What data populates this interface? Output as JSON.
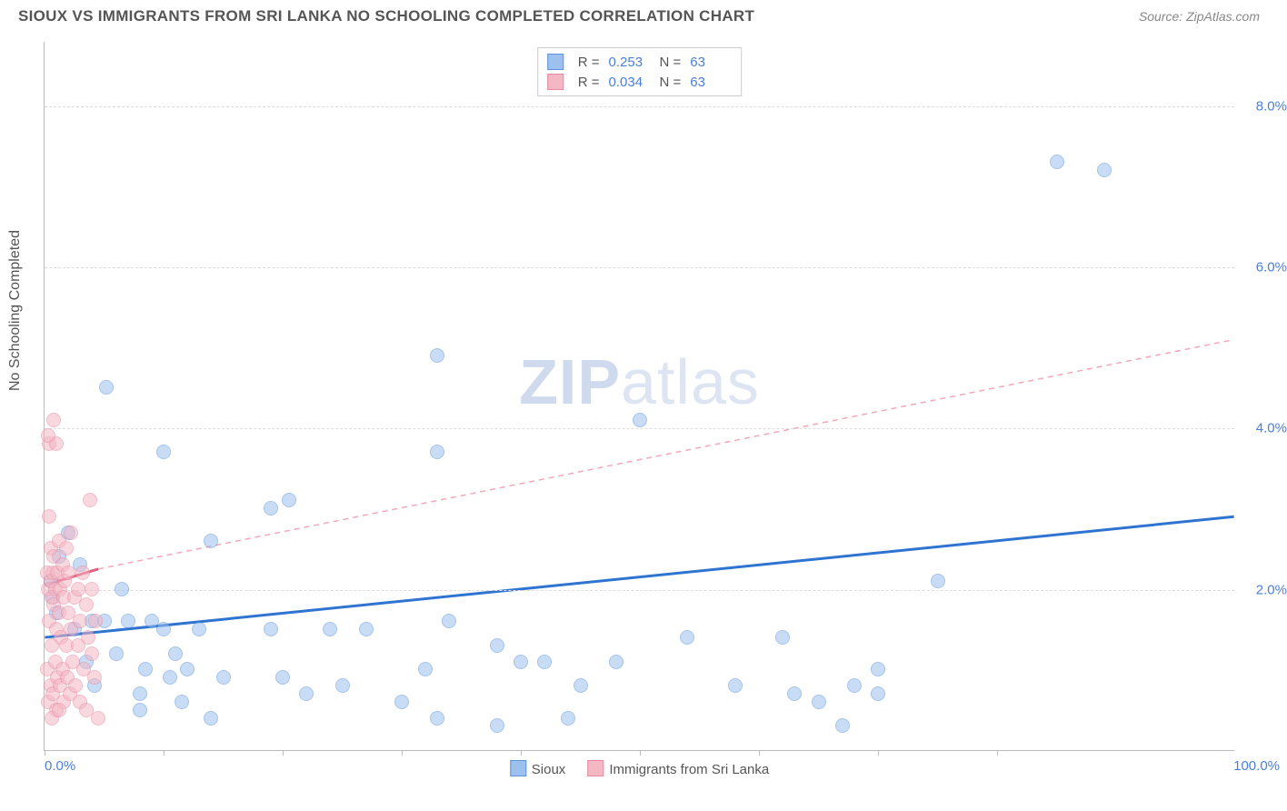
{
  "title": "SIOUX VS IMMIGRANTS FROM SRI LANKA NO SCHOOLING COMPLETED CORRELATION CHART",
  "source_label": "Source: ",
  "source_name": "ZipAtlas.com",
  "ylabel": "No Schooling Completed",
  "watermark_bold": "ZIP",
  "watermark_light": "atlas",
  "chart": {
    "type": "scatter",
    "xlim": [
      0,
      100
    ],
    "ylim": [
      0,
      8.8
    ],
    "ytick_values": [
      2.0,
      4.0,
      6.0,
      8.0
    ],
    "ytick_labels": [
      "2.0%",
      "4.0%",
      "6.0%",
      "8.0%"
    ],
    "xtick_positions": [
      0,
      10,
      20,
      30,
      40,
      50,
      60,
      70,
      80
    ],
    "xmin_label": "0.0%",
    "xmax_label": "100.0%",
    "grid_color": "#dddddd",
    "axis_color": "#bbbbbb",
    "background_color": "#ffffff",
    "marker_radius": 8,
    "marker_opacity": 0.55
  },
  "series": [
    {
      "name": "Sioux",
      "fill": "#9dc1ee",
      "stroke": "#5e95d9",
      "r_label": "R  =",
      "r_value": "0.253",
      "n_label": "N  =",
      "n_value": "63",
      "trend": {
        "x1": 0,
        "y1": 1.4,
        "x2": 100,
        "y2": 2.9,
        "stroke": "#2f74d0",
        "stroke_width": 3,
        "dash": ""
      },
      "points": [
        [
          0.5,
          2.1
        ],
        [
          0.7,
          1.9
        ],
        [
          1,
          1.7
        ],
        [
          1.2,
          2.4
        ],
        [
          2,
          2.7
        ],
        [
          2.5,
          1.5
        ],
        [
          3,
          2.3
        ],
        [
          3.5,
          1.1
        ],
        [
          4,
          1.6
        ],
        [
          4.2,
          0.8
        ],
        [
          5,
          1.6
        ],
        [
          5.2,
          4.5
        ],
        [
          6,
          1.2
        ],
        [
          6.5,
          2.0
        ],
        [
          7,
          1.6
        ],
        [
          8,
          0.7
        ],
        [
          8,
          0.5
        ],
        [
          8.5,
          1.0
        ],
        [
          9,
          1.6
        ],
        [
          10,
          1.5
        ],
        [
          10,
          3.7
        ],
        [
          10.5,
          0.9
        ],
        [
          11,
          1.2
        ],
        [
          11.5,
          0.6
        ],
        [
          12,
          1.0
        ],
        [
          13,
          1.5
        ],
        [
          14,
          2.6
        ],
        [
          14,
          0.4
        ],
        [
          15,
          0.9
        ],
        [
          19,
          3.0
        ],
        [
          19,
          1.5
        ],
        [
          20,
          0.9
        ],
        [
          20.5,
          3.1
        ],
        [
          22,
          0.7
        ],
        [
          24,
          1.5
        ],
        [
          25,
          0.8
        ],
        [
          27,
          1.5
        ],
        [
          30,
          0.6
        ],
        [
          32,
          1.0
        ],
        [
          33,
          0.4
        ],
        [
          33,
          3.7
        ],
        [
          33,
          4.9
        ],
        [
          34,
          1.6
        ],
        [
          38,
          0.3
        ],
        [
          38,
          1.3
        ],
        [
          40,
          1.1
        ],
        [
          42,
          1.1
        ],
        [
          44,
          0.4
        ],
        [
          45,
          0.8
        ],
        [
          48,
          1.1
        ],
        [
          50,
          4.1
        ],
        [
          54,
          1.4
        ],
        [
          58,
          0.8
        ],
        [
          62,
          1.4
        ],
        [
          65,
          0.6
        ],
        [
          67,
          0.3
        ],
        [
          68,
          0.8
        ],
        [
          70,
          0.7
        ],
        [
          75,
          2.1
        ],
        [
          85,
          7.3
        ],
        [
          89,
          7.2
        ],
        [
          70,
          1.0
        ],
        [
          63,
          0.7
        ]
      ]
    },
    {
      "name": "Immigrants from Sri Lanka",
      "fill": "#f4b7c4",
      "stroke": "#e88aa0",
      "r_label": "R  =",
      "r_value": "0.034",
      "n_label": "N  =",
      "n_value": "63",
      "trend_solid": {
        "x1": 0,
        "y1": 2.05,
        "x2": 4.5,
        "y2": 2.25,
        "stroke": "#e06080",
        "stroke_width": 3
      },
      "trend_dash": {
        "x1": 4.5,
        "y1": 2.25,
        "x2": 100,
        "y2": 5.1,
        "stroke": "#f2a8b8",
        "stroke_width": 1.5,
        "dash": "6,5"
      },
      "points": [
        [
          0.2,
          2.2
        ],
        [
          0.2,
          1.0
        ],
        [
          0.3,
          2.0
        ],
        [
          0.3,
          0.6
        ],
        [
          0.4,
          1.6
        ],
        [
          0.4,
          2.9
        ],
        [
          0.4,
          3.8
        ],
        [
          0.5,
          0.8
        ],
        [
          0.5,
          2.1
        ],
        [
          0.5,
          2.5
        ],
        [
          0.6,
          1.3
        ],
        [
          0.6,
          1.9
        ],
        [
          0.7,
          2.2
        ],
        [
          0.7,
          0.7
        ],
        [
          0.8,
          1.8
        ],
        [
          0.8,
          2.4
        ],
        [
          0.8,
          4.1
        ],
        [
          0.9,
          1.1
        ],
        [
          0.9,
          2.0
        ],
        [
          1.0,
          0.5
        ],
        [
          1.0,
          1.5
        ],
        [
          1.0,
          3.8
        ],
        [
          1.1,
          2.2
        ],
        [
          1.1,
          0.9
        ],
        [
          1.2,
          1.7
        ],
        [
          1.2,
          2.6
        ],
        [
          1.3,
          2.0
        ],
        [
          1.3,
          0.8
        ],
        [
          1.4,
          1.4
        ],
        [
          1.5,
          2.3
        ],
        [
          1.5,
          1.0
        ],
        [
          1.6,
          1.9
        ],
        [
          1.6,
          0.6
        ],
        [
          1.7,
          2.1
        ],
        [
          1.8,
          2.5
        ],
        [
          1.8,
          1.3
        ],
        [
          1.9,
          0.9
        ],
        [
          2.0,
          1.7
        ],
        [
          2.0,
          2.2
        ],
        [
          2.1,
          0.7
        ],
        [
          2.2,
          1.5
        ],
        [
          2.2,
          2.7
        ],
        [
          2.4,
          1.1
        ],
        [
          2.5,
          1.9
        ],
        [
          2.6,
          0.8
        ],
        [
          2.8,
          2.0
        ],
        [
          2.8,
          1.3
        ],
        [
          3.0,
          1.6
        ],
        [
          3.0,
          0.6
        ],
        [
          3.2,
          2.2
        ],
        [
          3.3,
          1.0
        ],
        [
          3.5,
          1.8
        ],
        [
          3.5,
          0.5
        ],
        [
          3.7,
          1.4
        ],
        [
          3.8,
          3.1
        ],
        [
          4.0,
          1.2
        ],
        [
          4.0,
          2.0
        ],
        [
          4.2,
          0.9
        ],
        [
          4.3,
          1.6
        ],
        [
          4.5,
          0.4
        ],
        [
          0.3,
          3.9
        ],
        [
          0.6,
          0.4
        ],
        [
          1.2,
          0.5
        ]
      ]
    }
  ],
  "xlegend": [
    {
      "label": "Sioux",
      "fill": "#9dc1ee",
      "stroke": "#5e95d9"
    },
    {
      "label": "Immigrants from Sri Lanka",
      "fill": "#f4b7c4",
      "stroke": "#e88aa0"
    }
  ]
}
